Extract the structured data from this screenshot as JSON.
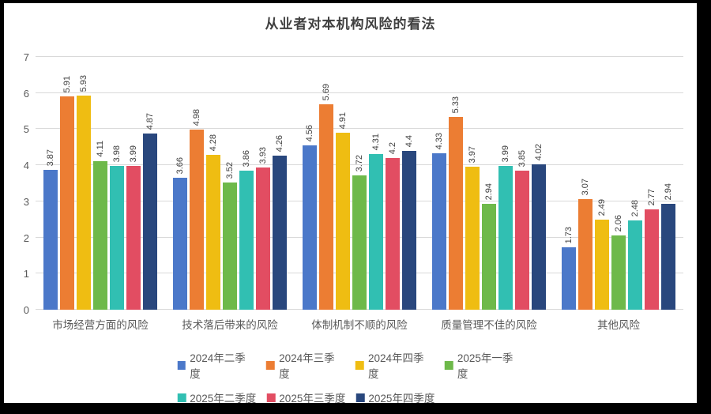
{
  "chart_data": {
    "type": "bar",
    "title": "从业者对本机构风险的看法",
    "categories": [
      "市场经营方面的风险",
      "技术落后带来的风险",
      "体制机制不顺的风险",
      "质量管理不佳的风险",
      "其他风险"
    ],
    "series": [
      {
        "name": "2024年二季度",
        "color": "#4B78C9",
        "values": [
          3.87,
          3.66,
          4.56,
          4.33,
          1.73
        ]
      },
      {
        "name": "2024年三季度",
        "color": "#EC7D33",
        "values": [
          5.91,
          4.98,
          5.69,
          5.33,
          3.07
        ]
      },
      {
        "name": "2024年四季度",
        "color": "#EFBD12",
        "values": [
          5.93,
          4.28,
          4.91,
          3.97,
          2.49
        ]
      },
      {
        "name": "2025年一季度",
        "color": "#6EB94A",
        "values": [
          4.11,
          3.52,
          3.72,
          2.94,
          2.06
        ]
      },
      {
        "name": "2025年二季度",
        "color": "#31BFB2",
        "values": [
          3.98,
          3.86,
          4.31,
          3.99,
          2.48
        ]
      },
      {
        "name": "2025年三季度",
        "color": "#E24D62",
        "values": [
          3.99,
          3.93,
          4.2,
          3.85,
          2.77
        ]
      },
      {
        "name": "2025年四季度",
        "color": "#29477D",
        "values": [
          4.87,
          4.26,
          4.4,
          4.02,
          2.94
        ]
      }
    ],
    "y_ticks": [
      0,
      1,
      2,
      3,
      4,
      5,
      6,
      7
    ],
    "ylim": [
      0,
      7
    ],
    "grid": true,
    "legend_position": "bottom",
    "legend_rows": [
      4,
      3
    ],
    "value_labels": "rotated-vertical",
    "gridline_color": "#d9d9d9"
  }
}
